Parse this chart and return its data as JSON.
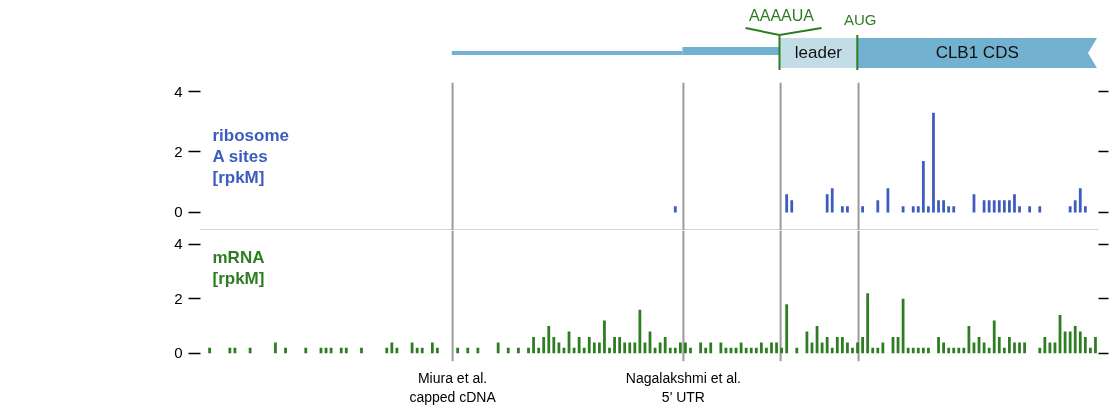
{
  "chart_data": [
    {
      "type": "bar",
      "ylabel": "ribosome\nA sites\n[rpkM]",
      "ylim": [
        -0.6,
        4.3
      ],
      "yticks": [
        0,
        2,
        4
      ],
      "tick_labels": "y",
      "categories": [
        null,
        null,
        null,
        null,
        null,
        null,
        null,
        null,
        null,
        null,
        null,
        null,
        null,
        null,
        null,
        null,
        null,
        null,
        null,
        null,
        null,
        null,
        null,
        null,
        null,
        null,
        null,
        null,
        null,
        null,
        null,
        null,
        null,
        null,
        null,
        null,
        null,
        null,
        null,
        null,
        null,
        null,
        null,
        null,
        null,
        null,
        null,
        null,
        null,
        null,
        null,
        null,
        null,
        null,
        null,
        null,
        null,
        null,
        null,
        null,
        null,
        null,
        null,
        null,
        null,
        null,
        null,
        null,
        null,
        null,
        null,
        null,
        null,
        null,
        null,
        null,
        null,
        null,
        null,
        null,
        null,
        null,
        null,
        null,
        null,
        null,
        null,
        null,
        null,
        null,
        null,
        null,
        null,
        null,
        null,
        null,
        null,
        null,
        null,
        null,
        null,
        null,
        null,
        null,
        null,
        null,
        null,
        null,
        null,
        null,
        null,
        null,
        null,
        null,
        null,
        null,
        null,
        null,
        null,
        null,
        null,
        null,
        null,
        null,
        null,
        null,
        null,
        null,
        null,
        null,
        null,
        null,
        null,
        null,
        null,
        null,
        null,
        null,
        null,
        null,
        null,
        null,
        null,
        null,
        null,
        null,
        null,
        null,
        null,
        null,
        null,
        null,
        null,
        null,
        null,
        null,
        null,
        null,
        null,
        null,
        null,
        null,
        null,
        null,
        null,
        null,
        null,
        null,
        null,
        null,
        null,
        null,
        null,
        null,
        null,
        null,
        null
      ],
      "series": [
        {
          "color": "#3c5cbf",
          "values": [
            0,
            0,
            0,
            0,
            0,
            0,
            0,
            0,
            0,
            0,
            0,
            0,
            0,
            0,
            0,
            0,
            0,
            0,
            0,
            0,
            0,
            0,
            0,
            0,
            0,
            0,
            0,
            0,
            0,
            0,
            0,
            0,
            0,
            0,
            0,
            0,
            0,
            0,
            0,
            0,
            0,
            0,
            0,
            0,
            0,
            0,
            0,
            0,
            0,
            0,
            0,
            0,
            0,
            0,
            0,
            0,
            0,
            0,
            0,
            0,
            0,
            0,
            0,
            0,
            0,
            0,
            0,
            0,
            0,
            0,
            0,
            0,
            0,
            0,
            0,
            0,
            0,
            0,
            0,
            0,
            0,
            0,
            0,
            0,
            0,
            0,
            0,
            0,
            0,
            0,
            0,
            0,
            0,
            0.2,
            0,
            0,
            0,
            0,
            0,
            0,
            0,
            0,
            0,
            0,
            0,
            0,
            0,
            0,
            0,
            0,
            0,
            0,
            0,
            0,
            0,
            0.6,
            0.4,
            0,
            0,
            0,
            0,
            0,
            0,
            0.6,
            0.8,
            0,
            0.2,
            0.2,
            0,
            0,
            0.2,
            0,
            0,
            0.4,
            0,
            0.8,
            0,
            0,
            0.2,
            0,
            0.2,
            0.2,
            1.7,
            0.2,
            3.3,
            0.4,
            0.4,
            0.2,
            0.2,
            0,
            0,
            0,
            0.6,
            0,
            0.4,
            0.4,
            0.4,
            0.4,
            0.4,
            0.4,
            0.6,
            0.2,
            0,
            0.2,
            0,
            0.2,
            0,
            0,
            0,
            0,
            0,
            0.2,
            0.4,
            0.8,
            0.2,
            0,
            0
          ]
        }
      ],
      "annotations": [
        "AAAAUA",
        "AUG",
        "leader",
        "CLB1 CDS"
      ]
    },
    {
      "type": "bar",
      "ylabel": "mRNA\n[rpkM]",
      "ylim": [
        -0.3,
        4.5
      ],
      "yticks": [
        0,
        2,
        4
      ],
      "tick_labels": "y",
      "categories": [
        null,
        null,
        null,
        null,
        null,
        null,
        null,
        null,
        null,
        null,
        null,
        null,
        null,
        null,
        null,
        null,
        null,
        null,
        null,
        null,
        null,
        null,
        null,
        null,
        null,
        null,
        null,
        null,
        null,
        null,
        null,
        null,
        null,
        null,
        null,
        null,
        null,
        null,
        null,
        null,
        null,
        null,
        null,
        null,
        null,
        null,
        null,
        null,
        null,
        null,
        null,
        null,
        null,
        null,
        null,
        null,
        null,
        null,
        null,
        null,
        null,
        null,
        null,
        null,
        null,
        null,
        null,
        null,
        null,
        null,
        null,
        null,
        null,
        null,
        null,
        null,
        null,
        null,
        null,
        null,
        null,
        null,
        null,
        null,
        null,
        null,
        null,
        null,
        null,
        null,
        null,
        null,
        null,
        null,
        null,
        null,
        null,
        null,
        null,
        null,
        null,
        null,
        null,
        null,
        null,
        null,
        null,
        null,
        null,
        null,
        null,
        null,
        null,
        null,
        null,
        null,
        null,
        null,
        null,
        null,
        null,
        null,
        null,
        null,
        null,
        null,
        null,
        null,
        null,
        null,
        null,
        null,
        null,
        null,
        null,
        null,
        null,
        null,
        null,
        null,
        null,
        null,
        null,
        null,
        null,
        null,
        null,
        null,
        null,
        null,
        null,
        null,
        null,
        null,
        null,
        null,
        null,
        null,
        null,
        null,
        null,
        null,
        null,
        null,
        null,
        null,
        null,
        null,
        null,
        null,
        null,
        null,
        null,
        null,
        null,
        null,
        null
      ],
      "series": [
        {
          "color": "#2e7d22",
          "values": [
            0,
            0.2,
            0,
            0,
            0,
            0.2,
            0.2,
            0,
            0,
            0.2,
            0,
            0,
            0,
            0,
            0.4,
            0,
            0.2,
            0,
            0,
            0,
            0.2,
            0,
            0,
            0.2,
            0.2,
            0.2,
            0,
            0.2,
            0.2,
            0,
            0,
            0.2,
            0,
            0,
            0,
            0,
            0.2,
            0.4,
            0.2,
            0,
            0,
            0.4,
            0.2,
            0.2,
            0,
            0.4,
            0.2,
            0,
            0,
            0,
            0.2,
            0,
            0.2,
            0,
            0.2,
            0,
            0,
            0,
            0.4,
            0,
            0.2,
            0,
            0.2,
            0,
            0.2,
            0.6,
            0.2,
            0.6,
            1.0,
            0.6,
            0.4,
            0.2,
            0.8,
            0.2,
            0.6,
            0.2,
            0.6,
            0.4,
            0.4,
            1.2,
            0.2,
            0.6,
            0.6,
            0.4,
            0.4,
            0.4,
            1.6,
            0.4,
            0.8,
            0.2,
            0.4,
            0.6,
            0.2,
            0.2,
            0.4,
            0.4,
            0.2,
            0,
            0.4,
            0.2,
            0.4,
            0,
            0.4,
            0.2,
            0.2,
            0.2,
            0.4,
            0.2,
            0.2,
            0.2,
            0.4,
            0.2,
            0.4,
            0.4,
            0.2,
            1.8,
            0,
            0.2,
            0,
            0.8,
            0.4,
            1.0,
            0.4,
            0.6,
            0.2,
            0.6,
            0.6,
            0.4,
            0.2,
            0.4,
            0.6,
            2.2,
            0.2,
            0.2,
            0.4,
            0,
            0.6,
            0.6,
            2.0,
            0.2,
            0.2,
            0.2,
            0.2,
            0.2,
            0,
            0.6,
            0.4,
            0.2,
            0.2,
            0.2,
            0.2,
            1.0,
            0.4,
            0.6,
            0.4,
            0.2,
            1.2,
            0.6,
            0.2,
            0.6,
            0.4,
            0.4,
            0.4,
            0,
            0,
            0.2,
            0.6,
            0.4,
            0.4,
            1.4,
            0.8,
            0.8,
            1.0,
            0.8,
            0.6,
            0.2,
            0.6
          ]
        }
      ],
      "annotations": [
        "Miura et al.\ncapped cDNA",
        "Nagalakshmi et al.\n5' UTR"
      ]
    }
  ]
}
